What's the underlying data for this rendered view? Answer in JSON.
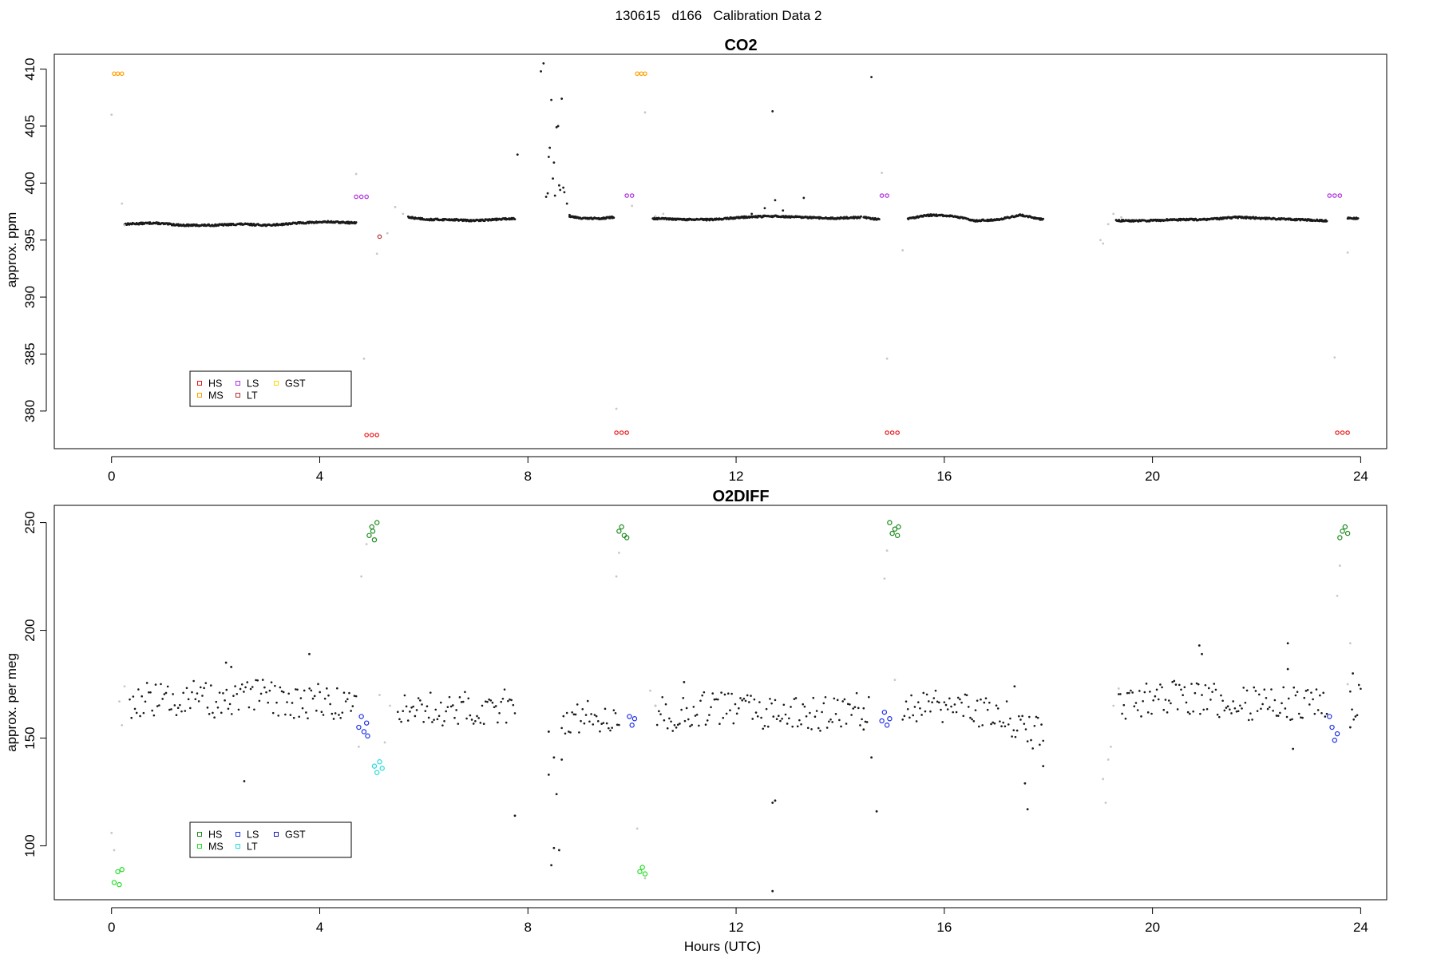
{
  "figure_title": "130615   d166   Calibration Data 2",
  "colors": {
    "sample": "#1a1a1a",
    "flush": "#c8c8c8",
    "co2": {
      "HS": "#e41a1c",
      "MS": "#ff9f00",
      "LS": "#b030e0",
      "LT": "#b03030",
      "GST": "#ffd700"
    },
    "o2": {
      "HS": "#1a8a1a",
      "MS": "#22dd22",
      "LS": "#1c2fe8",
      "LT": "#22dddd",
      "GST": "#1a1aaa"
    }
  },
  "chart_data": [
    {
      "id": "co2",
      "type": "scatter",
      "title": "CO2",
      "xlabel": "",
      "ylabel": "approx. ppm",
      "xlim": [
        -1.1,
        24.5
      ],
      "ylim": [
        376.7,
        411.3
      ],
      "xticks": [
        0,
        4,
        8,
        12,
        16,
        20,
        24
      ],
      "yticks": [
        380,
        385,
        390,
        395,
        400,
        405,
        410
      ],
      "legend": {
        "entries": [
          "HS",
          "MS",
          "LS",
          "LT",
          "GST"
        ],
        "position": "bottom-left"
      },
      "calibration": [
        {
          "tank": "HS",
          "points": [
            [
              4.9,
              377.9
            ],
            [
              5.0,
              377.9
            ],
            [
              5.1,
              377.9
            ],
            [
              9.7,
              378.1
            ],
            [
              9.8,
              378.1
            ],
            [
              9.9,
              378.1
            ],
            [
              14.9,
              378.1
            ],
            [
              15.0,
              378.1
            ],
            [
              15.1,
              378.1
            ],
            [
              23.55,
              378.1
            ],
            [
              23.65,
              378.1
            ],
            [
              23.75,
              378.1
            ]
          ]
        },
        {
          "tank": "MS",
          "points": [
            [
              0.05,
              409.6
            ],
            [
              0.12,
              409.6
            ],
            [
              0.2,
              409.6
            ],
            [
              10.1,
              409.6
            ],
            [
              10.18,
              409.6
            ],
            [
              10.25,
              409.6
            ]
          ]
        },
        {
          "tank": "LS",
          "points": [
            [
              4.7,
              398.8
            ],
            [
              4.8,
              398.8
            ],
            [
              4.9,
              398.8
            ],
            [
              9.9,
              398.9
            ],
            [
              10.0,
              398.9
            ],
            [
              14.8,
              398.9
            ],
            [
              14.9,
              398.9
            ],
            [
              23.4,
              398.9
            ],
            [
              23.5,
              398.9
            ],
            [
              23.6,
              398.9
            ]
          ]
        },
        {
          "tank": "LT",
          "points": [
            [
              5.15,
              395.3
            ]
          ]
        }
      ],
      "sample_segments": [
        {
          "x0": 0.25,
          "x1": 4.7,
          "y": [
            396.4,
            396.5,
            396.3,
            396.3,
            396.4,
            396.3,
            396.5,
            396.6,
            396.5
          ]
        },
        {
          "x0": 5.7,
          "x1": 7.75,
          "y": [
            397.0,
            396.8,
            396.8,
            396.7,
            396.8,
            396.9
          ]
        },
        {
          "x0": 8.8,
          "x1": 9.65,
          "y": [
            397.1,
            396.9,
            396.9,
            397.0
          ]
        },
        {
          "x0": 10.4,
          "x1": 14.4,
          "y": [
            396.9,
            396.8,
            396.8,
            397.0,
            397.1,
            397.0,
            396.9,
            397.0
          ]
        },
        {
          "x0": 14.45,
          "x1": 14.75,
          "y": [
            397.0,
            396.8
          ]
        },
        {
          "x0": 15.3,
          "x1": 17.9,
          "y": [
            396.9,
            397.2,
            397.1,
            396.7,
            396.8,
            397.2,
            396.8
          ]
        },
        {
          "x0": 19.3,
          "x1": 23.35,
          "y": [
            396.7,
            396.7,
            396.8,
            396.8,
            397.0,
            396.9,
            396.8,
            396.7
          ]
        },
        {
          "x0": 23.75,
          "x1": 23.95,
          "y": [
            396.9,
            396.9
          ]
        }
      ],
      "sample_points": [
        [
          7.8,
          402.5
        ],
        [
          8.25,
          409.8
        ],
        [
          8.3,
          410.5
        ],
        [
          8.35,
          398.8
        ],
        [
          8.4,
          402.3
        ],
        [
          8.45,
          407.3
        ],
        [
          8.5,
          401.8
        ],
        [
          8.55,
          404.9
        ],
        [
          8.6,
          399.8
        ],
        [
          8.65,
          407.4
        ],
        [
          8.7,
          399.2
        ],
        [
          8.75,
          398.2
        ],
        [
          8.8,
          397.2
        ],
        [
          8.38,
          399.1
        ],
        [
          8.42,
          403.1
        ],
        [
          8.48,
          400.4
        ],
        [
          8.52,
          398.9
        ],
        [
          8.58,
          405.0
        ],
        [
          8.62,
          399.4
        ],
        [
          8.68,
          399.6
        ],
        [
          12.7,
          406.3
        ],
        [
          12.55,
          397.8
        ],
        [
          12.75,
          398.5
        ],
        [
          13.3,
          398.7
        ],
        [
          14.6,
          409.3
        ],
        [
          12.3,
          397.3
        ],
        [
          12.9,
          397.6
        ]
      ],
      "flush_points": [
        [
          0.0,
          406.0
        ],
        [
          0.2,
          398.2
        ],
        [
          0.25,
          396.3
        ],
        [
          4.7,
          400.8
        ],
        [
          4.85,
          384.6
        ],
        [
          5.1,
          393.8
        ],
        [
          5.3,
          395.6
        ],
        [
          5.45,
          397.9
        ],
        [
          5.6,
          397.3
        ],
        [
          9.7,
          380.2
        ],
        [
          10.0,
          398.0
        ],
        [
          10.25,
          406.2
        ],
        [
          10.45,
          397.1
        ],
        [
          10.6,
          397.3
        ],
        [
          14.8,
          400.9
        ],
        [
          14.9,
          384.6
        ],
        [
          15.2,
          394.1
        ],
        [
          19.0,
          395.0
        ],
        [
          19.05,
          394.7
        ],
        [
          19.15,
          396.4
        ],
        [
          19.25,
          397.3
        ],
        [
          19.4,
          397.0
        ],
        [
          23.5,
          384.7
        ],
        [
          23.75,
          393.9
        ]
      ]
    },
    {
      "id": "o2diff",
      "type": "scatter",
      "title": "O2DIFF",
      "xlabel": "Hours (UTC)",
      "ylabel": "approx. per meg",
      "xlim": [
        -1.1,
        24.5
      ],
      "ylim": [
        75,
        258
      ],
      "xticks": [
        0,
        4,
        8,
        12,
        16,
        20,
        24
      ],
      "yticks": [
        100,
        150,
        200,
        250
      ],
      "legend": {
        "entries": [
          "HS",
          "MS",
          "LS",
          "LT",
          "GST"
        ],
        "position": "bottom-left"
      },
      "calibration": [
        {
          "tank": "HS",
          "points": [
            [
              4.95,
              244
            ],
            [
              5.0,
              248
            ],
            [
              5.05,
              242
            ],
            [
              5.1,
              250
            ],
            [
              5.02,
              246
            ],
            [
              9.75,
              246
            ],
            [
              9.8,
              248
            ],
            [
              9.85,
              244
            ],
            [
              9.9,
              243
            ],
            [
              14.95,
              250
            ],
            [
              15.0,
              245
            ],
            [
              15.05,
              247
            ],
            [
              15.1,
              244
            ],
            [
              15.12,
              248
            ],
            [
              23.6,
              243
            ],
            [
              23.65,
              246
            ],
            [
              23.7,
              248
            ],
            [
              23.75,
              245
            ]
          ]
        },
        {
          "tank": "MS",
          "points": [
            [
              0.05,
              83
            ],
            [
              0.12,
              88
            ],
            [
              0.15,
              82
            ],
            [
              0.2,
              89
            ],
            [
              10.15,
              88
            ],
            [
              10.2,
              90
            ],
            [
              10.25,
              87
            ]
          ]
        },
        {
          "tank": "LS",
          "points": [
            [
              4.75,
              155
            ],
            [
              4.8,
              160
            ],
            [
              4.85,
              153
            ],
            [
              4.9,
              157
            ],
            [
              4.92,
              151
            ],
            [
              9.95,
              160
            ],
            [
              10.0,
              156
            ],
            [
              10.05,
              159
            ],
            [
              14.8,
              158
            ],
            [
              14.85,
              162
            ],
            [
              14.9,
              156
            ],
            [
              14.95,
              159
            ],
            [
              23.4,
              160
            ],
            [
              23.45,
              155
            ],
            [
              23.5,
              149
            ],
            [
              23.55,
              152
            ]
          ]
        },
        {
          "tank": "LT",
          "points": [
            [
              5.05,
              137
            ],
            [
              5.1,
              134
            ],
            [
              5.15,
              139
            ],
            [
              5.2,
              136
            ]
          ]
        }
      ],
      "sample_segments": [
        {
          "x0": 0.35,
          "x1": 4.7,
          "y": [
            166,
            168,
            167,
            170,
            168,
            165,
            168,
            170,
            167,
            166,
            168,
            166,
            164
          ]
        },
        {
          "x0": 5.5,
          "x1": 7.75,
          "y": [
            166,
            163,
            164,
            162,
            164,
            163,
            162,
            165,
            164
          ]
        },
        {
          "x0": 8.65,
          "x1": 9.75,
          "y": [
            160,
            158,
            161,
            160,
            162
          ]
        },
        {
          "x0": 10.45,
          "x1": 14.55,
          "y": [
            162,
            160,
            163,
            164,
            163,
            161,
            160,
            162,
            161,
            163,
            164
          ]
        },
        {
          "x0": 15.2,
          "x1": 17.9,
          "y": [
            164,
            166,
            165,
            164,
            163,
            162,
            160,
            154,
            152
          ]
        },
        {
          "x0": 19.35,
          "x1": 23.35,
          "y": [
            164,
            167,
            168,
            169,
            168,
            167,
            166,
            165,
            166,
            167,
            166
          ]
        },
        {
          "x0": 23.8,
          "x1": 24.0,
          "y": [
            166,
            167
          ]
        }
      ],
      "sample_points": [
        [
          2.55,
          130
        ],
        [
          2.2,
          185
        ],
        [
          2.3,
          183
        ],
        [
          3.8,
          189
        ],
        [
          7.75,
          114
        ],
        [
          8.4,
          133
        ],
        [
          8.45,
          91
        ],
        [
          8.5,
          99
        ],
        [
          8.55,
          124
        ],
        [
          8.6,
          98
        ],
        [
          8.65,
          140
        ],
        [
          8.5,
          141
        ],
        [
          8.4,
          153
        ],
        [
          12.7,
          120
        ],
        [
          12.75,
          121
        ],
        [
          12.7,
          79
        ],
        [
          14.7,
          116
        ],
        [
          14.6,
          141
        ],
        [
          14.45,
          154
        ],
        [
          17.55,
          129
        ],
        [
          17.6,
          117
        ],
        [
          17.9,
          137
        ],
        [
          17.35,
          174
        ],
        [
          20.9,
          193
        ],
        [
          20.95,
          189
        ],
        [
          22.6,
          194
        ],
        [
          22.6,
          182
        ],
        [
          22.7,
          145
        ],
        [
          23.85,
          180
        ],
        [
          23.8,
          155
        ],
        [
          11.0,
          176
        ]
      ],
      "flush_points": [
        [
          0.0,
          106
        ],
        [
          0.05,
          98
        ],
        [
          0.15,
          167
        ],
        [
          0.2,
          156
        ],
        [
          0.25,
          174
        ],
        [
          4.8,
          225
        ],
        [
          4.75,
          146
        ],
        [
          4.9,
          240
        ],
        [
          5.15,
          170
        ],
        [
          5.25,
          148
        ],
        [
          5.35,
          165
        ],
        [
          9.7,
          225
        ],
        [
          9.75,
          236
        ],
        [
          10.1,
          108
        ],
        [
          10.25,
          85
        ],
        [
          10.35,
          172
        ],
        [
          10.45,
          165
        ],
        [
          14.85,
          224
        ],
        [
          14.9,
          237
        ],
        [
          15.05,
          177
        ],
        [
          19.05,
          131
        ],
        [
          19.1,
          120
        ],
        [
          19.15,
          140
        ],
        [
          19.2,
          146
        ],
        [
          19.25,
          165
        ],
        [
          19.35,
          173
        ],
        [
          23.55,
          216
        ],
        [
          23.6,
          230
        ],
        [
          23.8,
          194
        ],
        [
          23.75,
          175
        ]
      ]
    }
  ]
}
